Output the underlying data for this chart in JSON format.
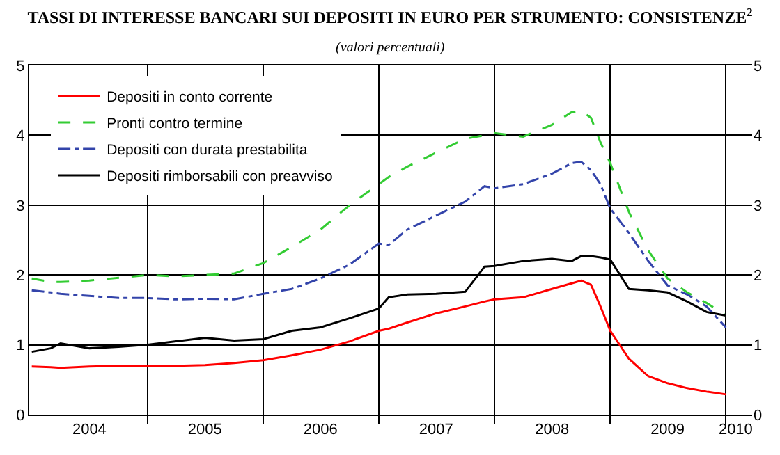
{
  "chart_data": {
    "type": "line",
    "title": "TASSI DI INTERESSE BANCARI SUI DEPOSITI IN EURO PER STRUMENTO: CONSISTENZE$^{2}$",
    "subtitle": "(valori percentuali)",
    "x": [
      "2004-01",
      "2004-03",
      "2004-04",
      "2004-07",
      "2004-10",
      "2005-01",
      "2005-04",
      "2005-07",
      "2005-10",
      "2006-01",
      "2006-04",
      "2006-07",
      "2006-10",
      "2007-01",
      "2007-02",
      "2007-04",
      "2007-07",
      "2007-10",
      "2007-12",
      "2008-01",
      "2008-04",
      "2008-07",
      "2008-09",
      "2008-10",
      "2008-11",
      "2008-12",
      "2009-01",
      "2009-03",
      "2009-05",
      "2009-07",
      "2009-09",
      "2009-11",
      "2010-01"
    ],
    "series": [
      {
        "name": "Depositi in conto corrente",
        "color": "#ff0000",
        "line_style": "solid",
        "values": [
          0.69,
          0.68,
          0.67,
          0.69,
          0.7,
          0.7,
          0.7,
          0.71,
          0.74,
          0.78,
          0.85,
          0.93,
          1.05,
          1.2,
          1.23,
          1.32,
          1.45,
          1.55,
          1.62,
          1.65,
          1.68,
          1.8,
          1.88,
          1.92,
          1.86,
          1.55,
          1.2,
          0.8,
          0.55,
          0.45,
          0.38,
          0.33,
          0.29
        ]
      },
      {
        "name": "Pronti contro termine",
        "color": "#33cc33",
        "line_style": "dashed",
        "values": [
          1.95,
          1.9,
          1.9,
          1.92,
          1.96,
          2.0,
          1.98,
          2.0,
          2.02,
          2.17,
          2.4,
          2.65,
          3.0,
          3.3,
          3.4,
          3.55,
          3.75,
          3.95,
          4.0,
          4.03,
          3.98,
          4.15,
          4.33,
          4.35,
          4.25,
          3.9,
          3.6,
          2.9,
          2.35,
          1.95,
          1.75,
          1.6,
          1.42
        ]
      },
      {
        "name": "Depositi con durata prestabilita",
        "color": "#3344aa",
        "line_style": "dashdot",
        "values": [
          1.78,
          1.75,
          1.73,
          1.7,
          1.67,
          1.67,
          1.65,
          1.66,
          1.65,
          1.73,
          1.8,
          1.95,
          2.15,
          2.45,
          2.43,
          2.65,
          2.85,
          3.05,
          3.27,
          3.24,
          3.3,
          3.45,
          3.6,
          3.62,
          3.5,
          3.3,
          2.95,
          2.6,
          2.2,
          1.85,
          1.72,
          1.55,
          1.25
        ]
      },
      {
        "name": "Depositi rimborsabili con preavviso",
        "color": "#000000",
        "line_style": "solid",
        "values": [
          0.9,
          0.95,
          1.02,
          0.95,
          0.97,
          1.0,
          1.05,
          1.1,
          1.06,
          1.08,
          1.2,
          1.25,
          1.38,
          1.52,
          1.68,
          1.72,
          1.73,
          1.76,
          2.12,
          2.13,
          2.2,
          2.23,
          2.2,
          2.27,
          2.27,
          2.25,
          2.22,
          1.8,
          1.78,
          1.75,
          1.62,
          1.47,
          1.42
        ]
      }
    ],
    "xlim": [
      "2003-12-24",
      "2010-03-25"
    ],
    "xticks": [
      {
        "value": "2004-07-01",
        "label": "2004"
      },
      {
        "value": "2005-07-01",
        "label": "2005"
      },
      {
        "value": "2006-07-01",
        "label": "2006"
      },
      {
        "value": "2007-07-01",
        "label": "2007"
      },
      {
        "value": "2008-07-01",
        "label": "2008"
      },
      {
        "value": "2009-07-01",
        "label": "2009"
      },
      {
        "value": "2010-02-01",
        "label": "2010"
      },
      {
        "value": "2005-01-01",
        "label": null
      },
      {
        "value": "2006-01-01",
        "label": null
      },
      {
        "value": "2007-01-01",
        "label": null
      },
      {
        "value": "2008-01-01",
        "label": null
      },
      {
        "value": "2009-01-01",
        "label": null
      },
      {
        "value": "2010-01-01",
        "label": null
      }
    ],
    "ylim": [
      0,
      5
    ],
    "yticks": [
      0,
      1,
      2,
      3,
      4,
      5
    ],
    "y2lim": [
      0,
      5
    ],
    "y2ticks": [
      0,
      1,
      2,
      3,
      4,
      5
    ],
    "grid": true,
    "legend": "top left"
  }
}
